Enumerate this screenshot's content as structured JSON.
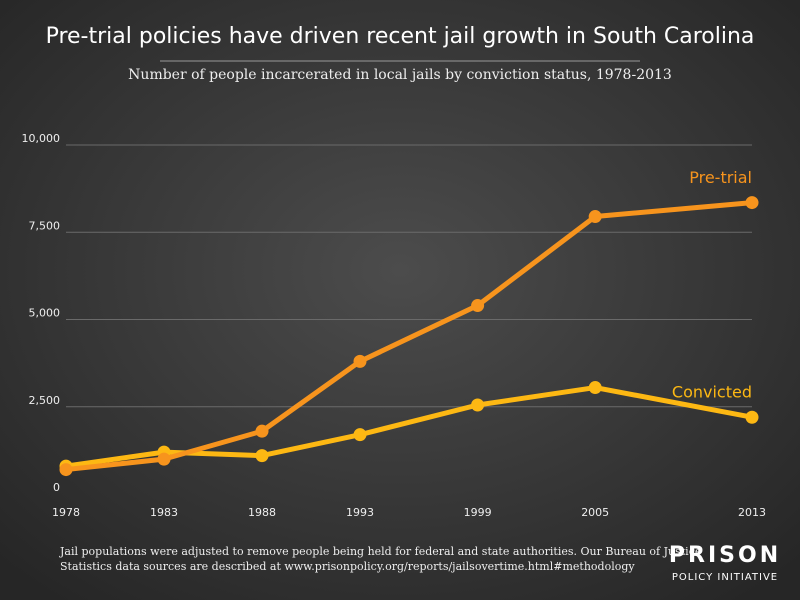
{
  "chart_data": {
    "type": "line",
    "title": "Pre-trial policies have driven recent jail growth in South Carolina",
    "subtitle": "Number of people incarcerated in local jails by conviction status, 1978-2013",
    "x": [
      1978,
      1983,
      1988,
      1993,
      1999,
      2005,
      2013
    ],
    "series": [
      {
        "name": "Pre-trial",
        "color": "#f7941d",
        "values": [
          700,
          1000,
          1800,
          3800,
          5400,
          7950,
          8350
        ]
      },
      {
        "name": "Convicted",
        "color": "#fdb813",
        "values": [
          800,
          1200,
          1100,
          1700,
          2550,
          3050,
          2200
        ]
      }
    ],
    "xlim": [
      1978,
      2013
    ],
    "xticks": [
      1978,
      1983,
      1988,
      1993,
      1999,
      2005,
      2013
    ],
    "ylim": [
      0,
      10000
    ],
    "yticks": [
      0,
      {
        "value": 2500,
        "label": "2,500"
      },
      {
        "value": 5000,
        "label": "5,000"
      },
      {
        "value": 7500,
        "label": "7,500"
      },
      {
        "value": 10000,
        "label": "10,000"
      }
    ],
    "grid": true,
    "footnote": [
      "Jail populations were adjusted to remove people being held for federal and state authorities. Our Bureau of Justice",
      "Statistics data sources are described at www.prisonpolicy.org/reports/jailsovertime.html#methodology"
    ],
    "logo": [
      "PRISON",
      "POLICY INITIATIVE"
    ]
  }
}
